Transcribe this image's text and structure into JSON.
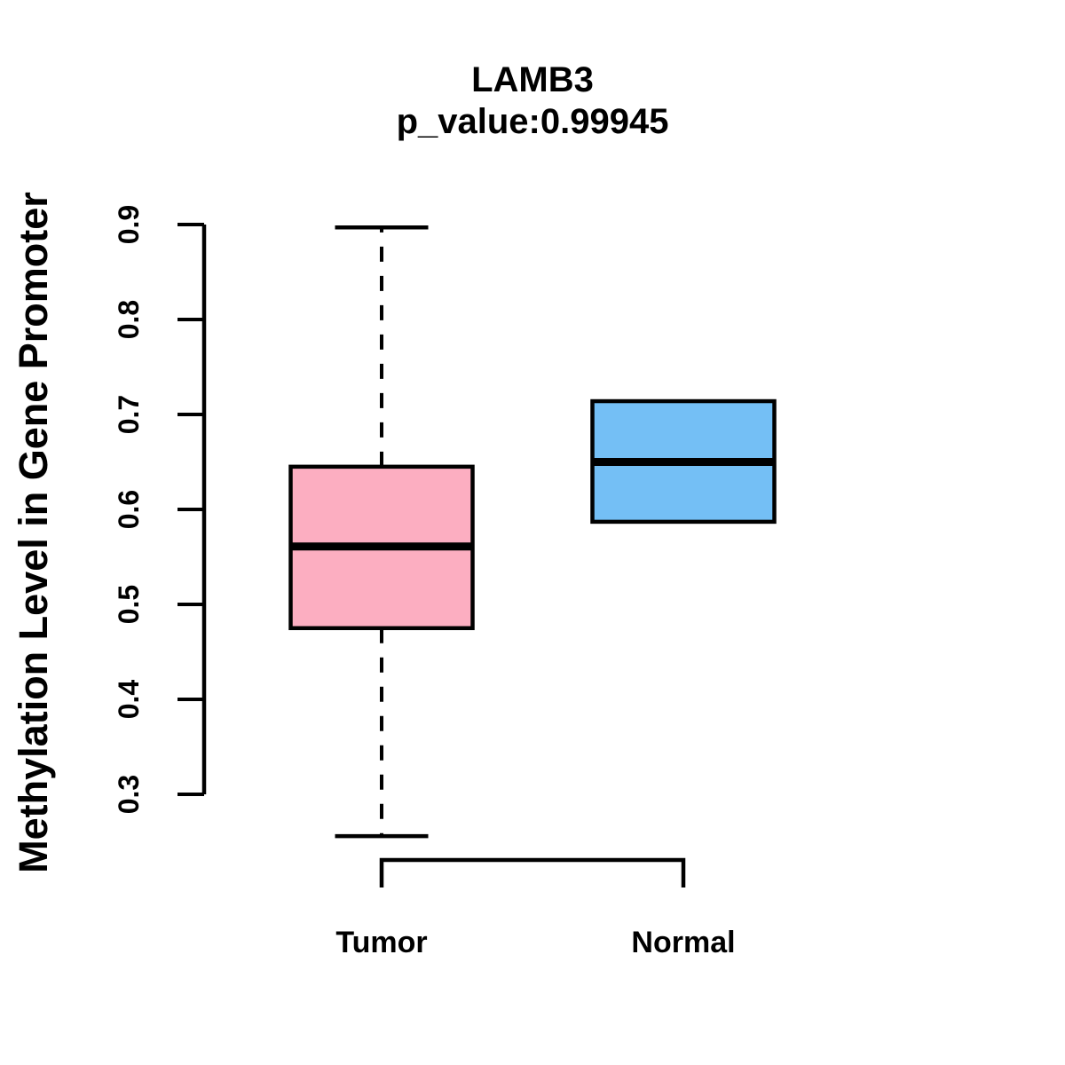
{
  "chart_data": {
    "type": "boxplot",
    "title": "LAMB3",
    "subtitle": "p_value:0.99945",
    "ylabel": "Methylation Level in Gene Promoter",
    "categories": [
      "Tumor",
      "Normal"
    ],
    "ytick_labels": [
      "0.3",
      "0.4",
      "0.5",
      "0.6",
      "0.7",
      "0.8",
      "0.9"
    ],
    "ylim": [
      0.3,
      0.9
    ],
    "grid": false,
    "legend": "none",
    "colors": {
      "stroke": "#000000",
      "background": "#ffffff",
      "tumor_fill": "#FCAEC1",
      "normal_fill": "#74BFF5"
    },
    "series": [
      {
        "name": "Tumor",
        "fill": "#FCAEC1",
        "whisker_low": 0.256,
        "q1": 0.475,
        "median": 0.561,
        "q3": 0.645,
        "whisker_high": 0.897
      },
      {
        "name": "Normal",
        "fill": "#74BFF5",
        "whisker_low": 0.587,
        "q1": 0.587,
        "median": 0.65,
        "q3": 0.714,
        "whisker_high": 0.714
      }
    ]
  }
}
